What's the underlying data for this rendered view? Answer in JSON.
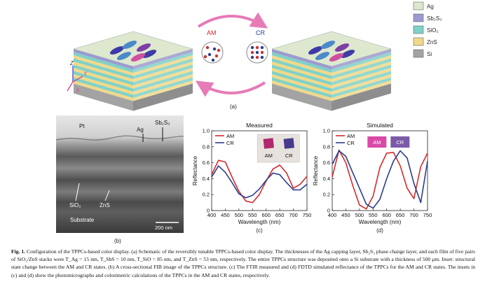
{
  "legend_a": {
    "items": [
      {
        "label": "Ag",
        "color": "#dde8cf"
      },
      {
        "label": "Sb₂S₃",
        "color": "#9c9ad0"
      },
      {
        "label": "SiO₂",
        "color": "#7fd1c7"
      },
      {
        "label": "ZnS",
        "color": "#f0d88a"
      },
      {
        "label": "Si",
        "color": "#a3a3a3"
      }
    ]
  },
  "panel_a": {
    "state_am": "AM",
    "state_cr": "CR",
    "axis_z": "Z",
    "axis_y": "Y",
    "axis_x": "X",
    "label": "(a)"
  },
  "panel_b": {
    "pt": "Pt",
    "ag": "Ag",
    "sb2s3": "Sb₂S₃",
    "sio2": "SiO₂",
    "zns": "ZnS",
    "substrate": "Substrate",
    "scale": "200 nm",
    "label": "(b)"
  },
  "chart_data": [
    {
      "type": "line",
      "title": "Measured",
      "xlabel": "Wavelength (nm)",
      "ylabel": "Reflectance",
      "xlim": [
        400,
        750
      ],
      "ylim": [
        0,
        1.0
      ],
      "xticks": [
        "400",
        "450",
        "500",
        "550",
        "600",
        "650",
        "700",
        "750"
      ],
      "yticks": [
        "0",
        "0.2",
        "0.4",
        "0.6",
        "0.8",
        "1.0"
      ],
      "legend": "top-left",
      "inset_labels": [
        "AM",
        "CR"
      ],
      "x": [
        400,
        425,
        450,
        475,
        500,
        525,
        550,
        575,
        600,
        625,
        650,
        675,
        700,
        725,
        750
      ],
      "series": [
        {
          "name": "AM",
          "color": "#d42b2b",
          "values": [
            0.45,
            0.63,
            0.61,
            0.42,
            0.24,
            0.12,
            0.1,
            0.2,
            0.37,
            0.52,
            0.57,
            0.47,
            0.28,
            0.33,
            0.43
          ]
        },
        {
          "name": "CR",
          "color": "#2c3d8f",
          "values": [
            0.42,
            0.56,
            0.48,
            0.35,
            0.21,
            0.16,
            0.19,
            0.27,
            0.38,
            0.47,
            0.45,
            0.35,
            0.26,
            0.26,
            0.33
          ]
        }
      ],
      "panel_label": "(c)"
    },
    {
      "type": "line",
      "title": "Simulated",
      "xlabel": "Wavelength (nm)",
      "ylabel": "Reflectance",
      "xlim": [
        400,
        750
      ],
      "ylim": [
        0,
        1.0
      ],
      "xticks": [
        "400",
        "450",
        "500",
        "550",
        "600",
        "650",
        "700",
        "750"
      ],
      "yticks": [
        "0",
        "0.2",
        "0.4",
        "0.6",
        "0.8",
        "1.0"
      ],
      "legend": "top-left",
      "inset_labels": [
        "AM",
        "CR"
      ],
      "inset_colors": [
        "#d94aa8",
        "#7b5aa8"
      ],
      "x": [
        400,
        425,
        450,
        475,
        500,
        525,
        550,
        575,
        600,
        625,
        650,
        675,
        700,
        725,
        750
      ],
      "series": [
        {
          "name": "AM",
          "color": "#d42b2b",
          "values": [
            0.42,
            0.76,
            0.6,
            0.32,
            0.07,
            0.02,
            0.18,
            0.54,
            0.72,
            0.73,
            0.56,
            0.28,
            0.15,
            0.55,
            0.72
          ]
        },
        {
          "name": "CR",
          "color": "#2c3d8f",
          "values": [
            0.58,
            0.75,
            0.68,
            0.48,
            0.28,
            0.08,
            0.03,
            0.14,
            0.4,
            0.62,
            0.75,
            0.66,
            0.34,
            0.1,
            0.62
          ]
        }
      ],
      "panel_label": "(d)"
    }
  ],
  "caption": {
    "lead": "Fig. 1.",
    "text": "Configuration of the TPPCs-based color display. (a) Schematic of the reversibly tunable TPPCs-based color display. The thicknesses of the Ag capping layer, Sb₂S₃ phase change layer, and each film of five pairs of SiO₂/ZnS stacks were T_Ag = 15 nm, T_SbS = 10 nm, T_SiO = 85 nm, and T_ZnS = 53 nm, respectively. The entire TPPCs structure was deposited onto a Si substrate with a thickness of 500 μm. Inset: structural state change between the AM and CR states. (b) A cross-sectional FIB image of the TPPCs structure. (c) The FTIR measured and (d) FDTD simulated reflectance of the TPPCs for the AM and CR states. The insets in (c) and (d) show the photomicrographs and colorimetric calculations of the TPPCs in the AM and CR states, respectively."
  }
}
